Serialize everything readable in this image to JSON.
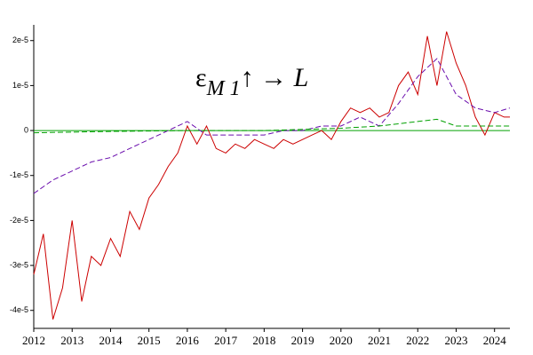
{
  "chart_data": {
    "type": "line",
    "annotation": {
      "base": "ε",
      "sub": "M 1",
      "rest": "↑ → L"
    },
    "xlim": [
      2012,
      2024.4
    ],
    "xticks": [
      2012,
      2013,
      2014,
      2015,
      2016,
      2017,
      2018,
      2019,
      2020,
      2021,
      2022,
      2023,
      2024
    ],
    "ylim": [
      -4.4e-05,
      2.35e-05
    ],
    "yticks": [
      {
        "value": 2e-05,
        "label": "2e-5"
      },
      {
        "value": 1e-05,
        "label": "1e-5"
      },
      0,
      {
        "value": -1e-05,
        "label": "-1e-5"
      },
      {
        "value": -2e-05,
        "label": "-2e-5"
      },
      {
        "value": -3e-05,
        "label": "-3e-5"
      },
      {
        "value": -4e-05,
        "label": "-4e-5"
      }
    ],
    "zero_line_color": "#00a000",
    "series": [
      {
        "color": "#cc0000",
        "dash": false,
        "x": [
          2012,
          2012.25,
          2012.5,
          2012.75,
          2013,
          2013.25,
          2013.5,
          2013.75,
          2014,
          2014.25,
          2014.5,
          2014.75,
          2015,
          2015.25,
          2015.5,
          2015.75,
          2016,
          2016.25,
          2016.5,
          2016.75,
          2017,
          2017.25,
          2017.5,
          2017.75,
          2018,
          2018.25,
          2018.5,
          2018.75,
          2019,
          2019.25,
          2019.5,
          2019.75,
          2020,
          2020.25,
          2020.5,
          2020.75,
          2021,
          2021.25,
          2021.5,
          2021.75,
          2022,
          2022.25,
          2022.5,
          2022.75,
          2023,
          2023.25,
          2023.5,
          2023.75,
          2024,
          2024.25,
          2024.4
        ],
        "values": [
          -3.2e-05,
          -2.3e-05,
          -4.2e-05,
          -3.5e-05,
          -2e-05,
          -3.8e-05,
          -2.8e-05,
          -3e-05,
          -2.4e-05,
          -2.8e-05,
          -1.8e-05,
          -2.2e-05,
          -1.5e-05,
          -1.2e-05,
          -8e-06,
          -5e-06,
          1e-06,
          -3e-06,
          1e-06,
          -4e-06,
          -5e-06,
          -3e-06,
          -4e-06,
          -2e-06,
          -3e-06,
          -4e-06,
          -2e-06,
          -3e-06,
          -2e-06,
          -1e-06,
          0,
          -2e-06,
          2e-06,
          5e-06,
          4e-06,
          5e-06,
          3e-06,
          4e-06,
          1e-05,
          1.3e-05,
          8e-06,
          2.1e-05,
          1e-05,
          2.2e-05,
          1.5e-05,
          1e-05,
          3e-06,
          -1e-06,
          4e-06,
          3e-06,
          3e-06
        ]
      },
      {
        "color": "#6a0dad",
        "dash": true,
        "x": [
          2012,
          2012.5,
          2013,
          2013.5,
          2014,
          2014.5,
          2015,
          2015.5,
          2016,
          2016.5,
          2017,
          2017.5,
          2018,
          2018.5,
          2019,
          2019.5,
          2020,
          2020.5,
          2021,
          2021.5,
          2022,
          2022.5,
          2023,
          2023.5,
          2024,
          2024.4
        ],
        "values": [
          -1.4e-05,
          -1.1e-05,
          -9e-06,
          -7e-06,
          -6e-06,
          -4e-06,
          -2e-06,
          0,
          2e-06,
          -1e-06,
          -1e-06,
          -1e-06,
          -1e-06,
          0,
          0,
          1e-06,
          1e-06,
          3e-06,
          1e-06,
          6e-06,
          1.2e-05,
          1.6e-05,
          8e-06,
          5e-06,
          4e-06,
          5e-06
        ]
      },
      {
        "color": "#00a000",
        "dash": true,
        "x": [
          2012,
          2014,
          2016,
          2018,
          2020,
          2021,
          2022,
          2022.5,
          2023,
          2024,
          2024.4
        ],
        "values": [
          -5e-07,
          -2e-07,
          0,
          0,
          5e-07,
          1e-06,
          2e-06,
          2.5e-06,
          1e-06,
          1e-06,
          1e-06
        ]
      }
    ]
  }
}
